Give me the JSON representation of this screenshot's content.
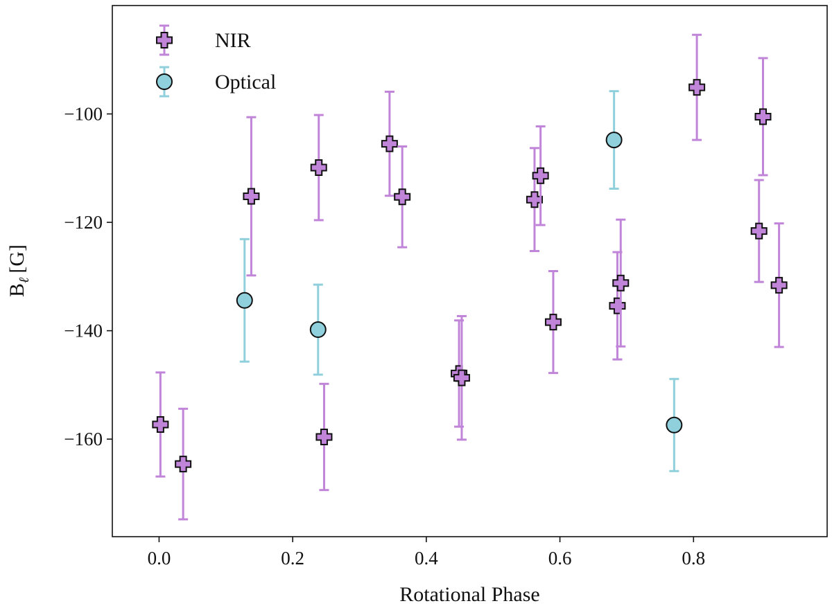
{
  "chart_data": {
    "type": "scatter",
    "title": "",
    "xlabel": "Rotational Phase",
    "ylabel_main": "B",
    "ylabel_sub": "ℓ",
    "ylabel_unit": "[G]",
    "xlim": [
      -0.07,
      1.0
    ],
    "ylim": [
      -178,
      -80
    ],
    "x_ticks": [
      0.0,
      0.2,
      0.4,
      0.6,
      0.8
    ],
    "x_tick_labels": [
      "0.0",
      "0.2",
      "0.4",
      "0.6",
      "0.8"
    ],
    "y_ticks": [
      -100,
      -120,
      -140,
      -160
    ],
    "y_tick_labels": [
      "−100",
      "−120",
      "−140",
      "−160"
    ],
    "grid": false,
    "legend_position": "upper-left",
    "series": [
      {
        "name": "NIR",
        "marker": "plus",
        "color": "#c084d8",
        "edge_color": "#111111",
        "points": [
          {
            "x": 0.002,
            "y": -157.3,
            "yerr": 9.6
          },
          {
            "x": 0.036,
            "y": -164.6,
            "yerr": 10.2
          },
          {
            "x": 0.138,
            "y": -115.2,
            "yerr": 14.6
          },
          {
            "x": 0.239,
            "y": -109.9,
            "yerr": 9.7
          },
          {
            "x": 0.247,
            "y": -159.6,
            "yerr": 9.8
          },
          {
            "x": 0.345,
            "y": -105.5,
            "yerr": 9.6
          },
          {
            "x": 0.364,
            "y": -115.3,
            "yerr": 9.3
          },
          {
            "x": 0.449,
            "y": -147.9,
            "yerr": 9.8
          },
          {
            "x": 0.453,
            "y": -148.7,
            "yerr": 11.4
          },
          {
            "x": 0.562,
            "y": -115.8,
            "yerr": 9.5
          },
          {
            "x": 0.571,
            "y": -111.4,
            "yerr": 9.1
          },
          {
            "x": 0.59,
            "y": -138.4,
            "yerr": 9.4
          },
          {
            "x": 0.686,
            "y": -135.4,
            "yerr": 9.9
          },
          {
            "x": 0.691,
            "y": -131.2,
            "yerr": 11.7
          },
          {
            "x": 0.805,
            "y": -95.1,
            "yerr": 9.7
          },
          {
            "x": 0.898,
            "y": -121.6,
            "yerr": 9.4
          },
          {
            "x": 0.904,
            "y": -100.5,
            "yerr": 10.8
          },
          {
            "x": 0.928,
            "y": -131.6,
            "yerr": 11.4
          }
        ]
      },
      {
        "name": "Optical",
        "marker": "circle",
        "color": "#8fd0dc",
        "edge_color": "#111111",
        "points": [
          {
            "x": 0.128,
            "y": -134.4,
            "yerr": 11.3
          },
          {
            "x": 0.238,
            "y": -139.8,
            "yerr": 8.3
          },
          {
            "x": 0.681,
            "y": -104.8,
            "yerr": 9.0
          },
          {
            "x": 0.771,
            "y": -157.4,
            "yerr": 8.5
          }
        ]
      }
    ]
  }
}
